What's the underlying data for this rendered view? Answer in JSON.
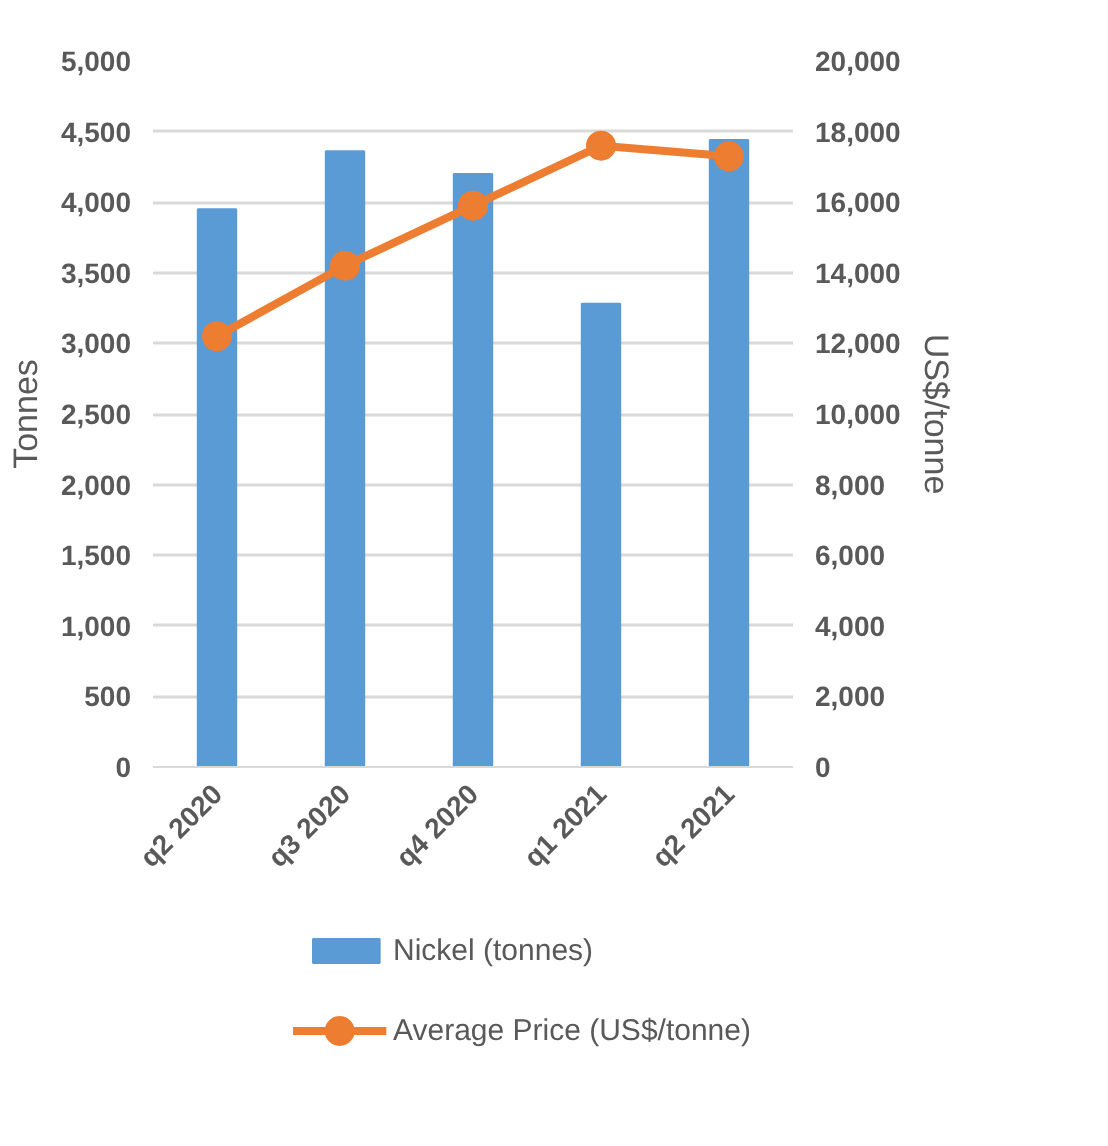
{
  "chart_data": {
    "type": "bar",
    "categories": [
      "q2 2020",
      "q3 2020",
      "q4 2020",
      "q1 2021",
      "q2 2021"
    ],
    "ylabel": "Tonnes",
    "y2label": "US$/tonne",
    "ylim": [
      0,
      5000
    ],
    "yticks": [
      {
        "value": 0,
        "label": "0"
      },
      {
        "value": 500,
        "label": "500"
      },
      {
        "value": 1000,
        "label": "1,000"
      },
      {
        "value": 1500,
        "label": "1,500"
      },
      {
        "value": 2000,
        "label": "2,000"
      },
      {
        "value": 2500,
        "label": "2,500"
      },
      {
        "value": 3000,
        "label": "3,000"
      },
      {
        "value": 3500,
        "label": "3,500"
      },
      {
        "value": 4000,
        "label": "4,000"
      },
      {
        "value": 4500,
        "label": "4,500"
      },
      {
        "value": 5000,
        "label": "5,000"
      }
    ],
    "y2lim": [
      0,
      20000
    ],
    "y2ticks": [
      {
        "value": 0,
        "label": "0"
      },
      {
        "value": 2000,
        "label": "2,000"
      },
      {
        "value": 4000,
        "label": "4,000"
      },
      {
        "value": 6000,
        "label": "6,000"
      },
      {
        "value": 8000,
        "label": "8,000"
      },
      {
        "value": 10000,
        "label": "10,000"
      },
      {
        "value": 12000,
        "label": "12,000"
      },
      {
        "value": 14000,
        "label": "14,000"
      },
      {
        "value": 16000,
        "label": "16,000"
      },
      {
        "value": 18000,
        "label": "18,000"
      },
      {
        "value": 20000,
        "label": "20,000"
      }
    ],
    "grid": "y",
    "legend": "bottom",
    "series": [
      {
        "name": "Nickel (tonnes)",
        "color": "#5b9bd5",
        "values": [
          3950,
          4360,
          4200,
          3280,
          4440
        ]
      },
      {
        "name": "Average Price (US$/tonne)",
        "type": "line",
        "axis": "y2",
        "marker": "circle",
        "color": "#ed7d31",
        "values": [
          12200,
          14200,
          15900,
          17600,
          17300
        ]
      }
    ]
  }
}
